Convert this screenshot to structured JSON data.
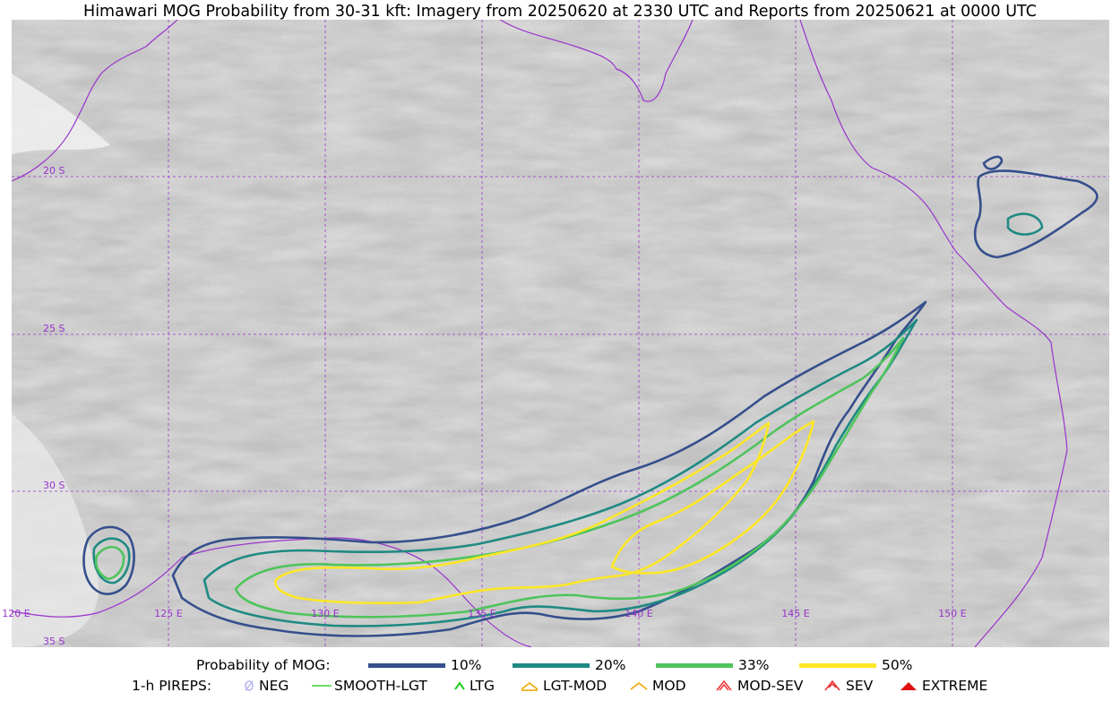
{
  "title": "Himawari MOG Probability from 30-31 kft: Imagery from 20250620 at 2330 UTC and Reports from 20250621 at 0000 UTC",
  "map": {
    "lat_labels": [
      "20 S",
      "25 S",
      "30 S",
      "35 S"
    ],
    "lon_labels": [
      "120 E",
      "125 E",
      "130 E",
      "135 E",
      "140 E",
      "145 E",
      "150 E"
    ],
    "gridline_color": "#9933cc",
    "coastline_color": "#9933cc",
    "background": "satellite-imagery-gray"
  },
  "legend_probability": {
    "title": "Probability of MOG:",
    "items": [
      {
        "label": "10%",
        "color": "#354f8c"
      },
      {
        "label": "20%",
        "color": "#1f8a83"
      },
      {
        "label": "33%",
        "color": "#4fc45c"
      },
      {
        "label": "50%",
        "color": "#fde725"
      }
    ]
  },
  "legend_pireps": {
    "title": "1-h PIREPS:",
    "items": [
      {
        "label": "NEG",
        "icon": "neg-icon",
        "color": "#b9b6f0"
      },
      {
        "label": "SMOOTH-LGT",
        "icon": "smooth-lgt-line-icon",
        "color": "#3ad43a"
      },
      {
        "label": "LTG",
        "icon": "ltg-chevron-icon",
        "color": "#1ed01e"
      },
      {
        "label": "LGT-MOD",
        "icon": "lgt-mod-icon",
        "color": "#f0b020"
      },
      {
        "label": "MOD",
        "icon": "mod-chevron-icon",
        "color": "#f0b020"
      },
      {
        "label": "MOD-SEV",
        "icon": "mod-sev-icon",
        "color": "#e83030"
      },
      {
        "label": "SEV",
        "icon": "sev-icon",
        "color": "#e83030"
      },
      {
        "label": "EXTREME",
        "icon": "extreme-icon",
        "color": "#e01010"
      }
    ]
  }
}
